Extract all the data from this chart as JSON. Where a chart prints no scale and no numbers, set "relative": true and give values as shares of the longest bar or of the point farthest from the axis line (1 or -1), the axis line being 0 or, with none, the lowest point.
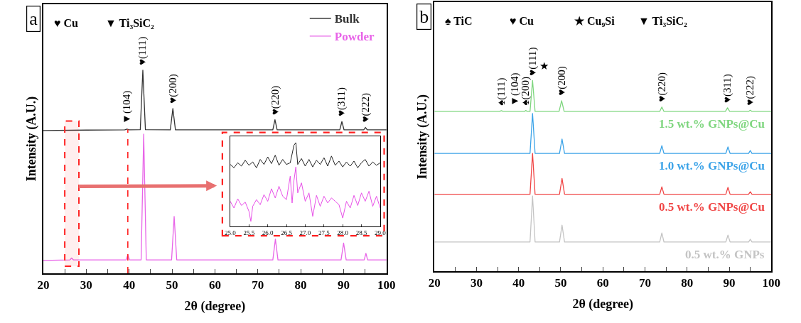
{
  "chart_data": [
    {
      "type": "line",
      "title": "a",
      "xlabel": "2θ (degree)",
      "ylabel": "Intensity (A.U.)",
      "relative": true,
      "legend": "top right",
      "xlim": [
        20,
        100
      ],
      "xticks": [
        20,
        {
          "value": 25,
          "label": null
        },
        30,
        {
          "value": 35,
          "label": null
        },
        40,
        {
          "value": 45,
          "label": null
        },
        50,
        {
          "value": 55,
          "label": null
        },
        60,
        {
          "value": 65,
          "label": null
        },
        70,
        {
          "value": 75,
          "label": null
        },
        80,
        {
          "value": 85,
          "label": null
        },
        90,
        {
          "value": 95,
          "label": null
        },
        100
      ],
      "series": [
        {
          "name": "Bulk",
          "color": "#333333",
          "x": [
            20,
            30,
            39,
            39.5,
            40,
            42.6,
            43.2,
            43.8,
            49.6,
            50.2,
            50.8,
            73.5,
            74.0,
            74.5,
            89.1,
            89.6,
            90.1,
            94.7,
            95.1,
            95.5,
            100
          ],
          "values": [
            0.703,
            0.705,
            0.706,
            0.71,
            0.706,
            0.707,
            1.0,
            0.707,
            0.706,
            0.811,
            0.706,
            0.706,
            0.756,
            0.706,
            0.706,
            0.747,
            0.706,
            0.706,
            0.718,
            0.706,
            0.706
          ]
        },
        {
          "name": "Powder",
          "color": "#e864e8",
          "x": [
            20,
            26.2,
            26.6,
            27.0,
            39.3,
            39.7,
            40.1,
            42.8,
            43.4,
            44.0,
            49.9,
            50.5,
            51.1,
            73.5,
            74.1,
            74.7,
            89.4,
            90.0,
            90.6,
            94.8,
            95.2,
            95.6,
            100
          ],
          "values": [
            0.063,
            0.066,
            0.075,
            0.066,
            0.066,
            0.091,
            0.066,
            0.066,
            0.685,
            0.066,
            0.066,
            0.28,
            0.066,
            0.066,
            0.168,
            0.066,
            0.066,
            0.149,
            0.066,
            0.066,
            0.098,
            0.066,
            0.066
          ]
        }
      ],
      "annotations": [
        "♥ Cu",
        "▼ Ti₃SiC₂",
        {
          "text": "▼(104)",
          "x": 39.5,
          "y": 0.71
        },
        {
          "text": "♥(111)",
          "x": 43.2,
          "y": 1.0
        },
        {
          "text": "♥(200)",
          "x": 50.2,
          "y": 0.811
        },
        {
          "text": "♥(220)",
          "x": 74.0,
          "y": 0.756
        },
        {
          "text": "♥(311)",
          "x": 89.6,
          "y": 0.747
        },
        {
          "text": "♥(222)",
          "x": 95.1,
          "y": 0.718
        }
      ],
      "ref_lines": [
        {
          "axis": "x",
          "value": 39.7,
          "color": "#ff2020",
          "line_style": "dashed"
        }
      ],
      "bands": [
        {
          "axis": "x",
          "from": 25,
          "to": 28.3,
          "color": "#ff2020"
        }
      ]
    },
    {
      "type": "line",
      "relative": true,
      "xlim": [
        25,
        29
      ],
      "xticks": [
        {
          "value": 25,
          "label": "25.0"
        },
        {
          "value": 25.5,
          "label": "25.5"
        },
        {
          "value": 26,
          "label": "26.0"
        },
        {
          "value": 26.5,
          "label": "26.5"
        },
        {
          "value": 27,
          "label": "27.0"
        },
        {
          "value": 27.5,
          "label": "27.5"
        },
        {
          "value": 28,
          "label": "28.0"
        },
        {
          "value": 28.5,
          "label": "28.5"
        },
        {
          "value": 29,
          "label": "29.0"
        }
      ],
      "series": [
        {
          "color": "#222222",
          "x": [
            25.0,
            25.1,
            25.2,
            25.3,
            25.4,
            25.5,
            25.6,
            25.7,
            25.8,
            25.9,
            26.0,
            26.1,
            26.2,
            26.3,
            26.4,
            26.5,
            26.6,
            26.7,
            26.75,
            26.8,
            26.9,
            27.0,
            27.1,
            27.2,
            27.3,
            27.4,
            27.5,
            27.6,
            27.7,
            27.8,
            27.9,
            28.0,
            28.1,
            28.2,
            28.3,
            28.4,
            28.5,
            28.6,
            28.7,
            28.8,
            28.9,
            29.0
          ],
          "values": [
            0.74,
            0.7,
            0.76,
            0.72,
            0.79,
            0.73,
            0.77,
            0.7,
            0.8,
            0.74,
            0.83,
            0.75,
            0.85,
            0.73,
            0.8,
            0.74,
            0.76,
            0.97,
            1.0,
            0.74,
            0.81,
            0.72,
            0.8,
            0.71,
            0.79,
            0.74,
            0.82,
            0.72,
            0.84,
            0.73,
            0.78,
            0.71,
            0.77,
            0.72,
            0.78,
            0.7,
            0.76,
            0.8,
            0.72,
            0.77,
            0.73,
            0.76
          ]
        },
        {
          "color": "#e850e8",
          "x": [
            25.0,
            25.1,
            25.2,
            25.3,
            25.4,
            25.5,
            25.55,
            25.6,
            25.7,
            25.8,
            25.9,
            26.0,
            26.1,
            26.2,
            26.3,
            26.4,
            26.5,
            26.6,
            26.65,
            26.7,
            26.75,
            26.8,
            26.9,
            27.0,
            27.1,
            27.2,
            27.3,
            27.4,
            27.5,
            27.6,
            27.7,
            27.8,
            27.9,
            28.0,
            28.1,
            28.2,
            28.3,
            28.4,
            28.5,
            28.6,
            28.7,
            28.8,
            28.9,
            29.0
          ],
          "values": [
            0.3,
            0.22,
            0.33,
            0.25,
            0.29,
            0.18,
            0.06,
            0.24,
            0.32,
            0.26,
            0.38,
            0.3,
            0.45,
            0.34,
            0.48,
            0.36,
            0.32,
            0.6,
            0.28,
            0.55,
            0.71,
            0.4,
            0.52,
            0.3,
            0.4,
            0.12,
            0.37,
            0.24,
            0.36,
            0.28,
            0.34,
            0.3,
            0.26,
            0.1,
            0.3,
            0.22,
            0.37,
            0.25,
            0.4,
            0.3,
            0.42,
            0.24,
            0.36,
            0.22
          ]
        }
      ]
    },
    {
      "type": "line",
      "title": "b",
      "xlabel": "2θ (degree)",
      "ylabel": "Intensity (A.U.)",
      "relative": true,
      "xlim": [
        20,
        100
      ],
      "xticks": [
        20,
        {
          "value": 25,
          "label": null
        },
        30,
        {
          "value": 35,
          "label": null
        },
        40,
        {
          "value": 45,
          "label": null
        },
        50,
        {
          "value": 55,
          "label": null
        },
        60,
        {
          "value": 65,
          "label": null
        },
        70,
        {
          "value": 75,
          "label": null
        },
        80,
        {
          "value": 85,
          "label": null
        },
        90,
        {
          "value": 95,
          "label": null
        },
        100
      ],
      "series": [
        {
          "name": "1.5 wt.% GNPs@Cu",
          "color": "#7fd67f",
          "x": [
            20,
            35.5,
            35.9,
            36.3,
            41.4,
            41.7,
            42.0,
            42.7,
            43.3,
            43.9,
            49.6,
            50.2,
            50.8,
            73.5,
            74.0,
            74.5,
            89.1,
            89.6,
            90.1,
            94.6,
            95.0,
            95.4,
            100
          ],
          "values": [
            0.838,
            0.838,
            0.842,
            0.838,
            0.838,
            0.843,
            0.838,
            0.838,
            1.0,
            0.838,
            0.838,
            0.894,
            0.838,
            0.838,
            0.861,
            0.838,
            0.838,
            0.857,
            0.838,
            0.838,
            0.844,
            0.838,
            0.838
          ]
        },
        {
          "name": "1.0 wt.% GNPs@Cu",
          "color": "#3ba3e8",
          "x": [
            20,
            42.7,
            43.3,
            43.9,
            49.7,
            50.3,
            50.9,
            73.5,
            74.0,
            74.5,
            89.2,
            89.7,
            90.2,
            94.6,
            95.0,
            95.4,
            100
          ],
          "values": [
            0.618,
            0.618,
            0.827,
            0.618,
            0.618,
            0.693,
            0.618,
            0.618,
            0.659,
            0.618,
            0.618,
            0.652,
            0.618,
            0.618,
            0.633,
            0.618,
            0.618
          ]
        },
        {
          "name": "0.5 wt.% GNPs@Cu",
          "color": "#f04545",
          "x": [
            20,
            42.7,
            43.3,
            43.9,
            49.7,
            50.3,
            50.9,
            73.5,
            74.0,
            74.5,
            89.2,
            89.7,
            90.2,
            94.6,
            95.0,
            95.4,
            100
          ],
          "values": [
            0.404,
            0.404,
            0.618,
            0.404,
            0.404,
            0.487,
            0.404,
            0.404,
            0.443,
            0.404,
            0.404,
            0.44,
            0.404,
            0.404,
            0.417,
            0.404,
            0.404
          ]
        },
        {
          "name": "0.5 wt.% GNPs",
          "color": "#c4c4c4",
          "x": [
            20,
            42.7,
            43.3,
            43.9,
            49.7,
            50.3,
            50.9,
            73.5,
            74.0,
            74.5,
            89.2,
            89.7,
            90.2,
            94.6,
            95.0,
            95.4,
            100
          ],
          "values": [
            0.154,
            0.154,
            0.395,
            0.154,
            0.154,
            0.242,
            0.154,
            0.154,
            0.201,
            0.154,
            0.154,
            0.19,
            0.154,
            0.154,
            0.168,
            0.154,
            0.154
          ]
        }
      ],
      "annotations": [
        "♠ TiC",
        "♥ Cu",
        "★ Cu₉Si",
        "▼ Ti₃SiC₂",
        {
          "text": "♠(111)",
          "x": 35.9,
          "y": 0.842
        },
        {
          "text": "▼(104)",
          "x": 39.1,
          "y": 0.838
        },
        {
          "text": "♠(200)",
          "x": 41.7,
          "y": 0.843
        },
        {
          "text": "♥(111)",
          "x": 43.3,
          "y": 1.0
        },
        {
          "text": "★",
          "x": 43.3,
          "y": 1.0
        },
        {
          "text": "♥(200)",
          "x": 50.2,
          "y": 0.894
        },
        {
          "text": "♥(220)",
          "x": 74.0,
          "y": 0.861
        },
        {
          "text": "♥(311)",
          "x": 89.6,
          "y": 0.857
        },
        {
          "text": "♥(222)",
          "x": 95.0,
          "y": 0.844
        }
      ]
    }
  ]
}
